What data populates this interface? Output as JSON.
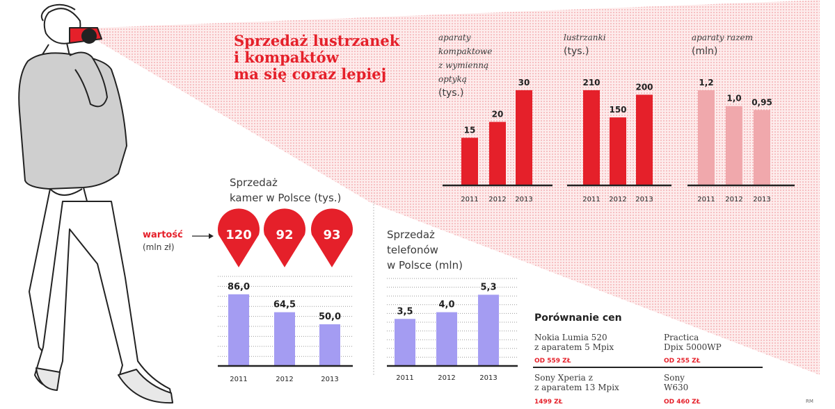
{
  "title": [
    "Sprzedaż lustrzanek",
    "i kompaktów",
    "ma się coraz lepiej"
  ],
  "colors": {
    "red": "#e5202a",
    "pink": "#f0a8ac",
    "purple": "#a49cf2",
    "axis": "#222222"
  },
  "chart_data": [
    {
      "type": "bar",
      "label": [
        "aparaty",
        "kompaktowe",
        "z wymienną",
        "optyką"
      ],
      "unit": "(tys.)",
      "categories": [
        "2011",
        "2012",
        "2013"
      ],
      "values": [
        15,
        20,
        30
      ],
      "value_labels": [
        "15",
        "20",
        "30"
      ],
      "ylim": [
        0,
        35
      ],
      "color": "red"
    },
    {
      "type": "bar",
      "label": [
        "lustrzanki"
      ],
      "unit": "(tys.)",
      "categories": [
        "2011",
        "2012",
        "2013"
      ],
      "values": [
        210,
        150,
        200
      ],
      "value_labels": [
        "210",
        "150",
        "200"
      ],
      "ylim": [
        0,
        245
      ],
      "color": "red"
    },
    {
      "type": "bar",
      "label": [
        "aparaty razem"
      ],
      "unit": "(mln)",
      "categories": [
        "2011",
        "2012",
        "2013"
      ],
      "values": [
        1.2,
        1.0,
        0.95
      ],
      "value_labels": [
        "1,2",
        "1,0",
        "0,95"
      ],
      "ylim": [
        0,
        1.4
      ],
      "color": "pink"
    },
    {
      "type": "bar",
      "label": [
        "Sprzedaż",
        "kamer w Polsce (tys.)"
      ],
      "categories": [
        "2011",
        "2012",
        "2013"
      ],
      "values": [
        86.0,
        64.5,
        50.0
      ],
      "value_labels": [
        "86,0",
        "64,5",
        "50,0"
      ],
      "ylim": [
        0,
        100
      ],
      "grid": true,
      "color": "purple",
      "annotation": {
        "label": "wartość",
        "unit": "(mln zł)",
        "values": [
          "120",
          "92",
          "93"
        ]
      }
    },
    {
      "type": "bar",
      "label": [
        "Sprzedaż",
        "telefonów",
        "w Polsce (mln)"
      ],
      "categories": [
        "2011",
        "2012",
        "2013"
      ],
      "values": [
        3.5,
        4.0,
        5.3
      ],
      "value_labels": [
        "3,5",
        "4,0",
        "5,3"
      ],
      "ylim": [
        0,
        6.2
      ],
      "grid": true,
      "color": "purple"
    }
  ],
  "price_comparison": {
    "title": "Porównanie cen",
    "items": [
      {
        "name": [
          "Nokia Lumia 520",
          "z aparatem 5 Mpix"
        ],
        "price": "OD 559 ZŁ"
      },
      {
        "name": [
          "Practica",
          "Dpix 5000WP"
        ],
        "price": "OD 255 ZŁ"
      },
      {
        "name": [
          "Sony Xperia z",
          "z aparatem 13 Mpix"
        ],
        "price": "1499 ZŁ"
      },
      {
        "name": [
          "Sony",
          "W630"
        ],
        "price": "OD 460 ZŁ"
      }
    ]
  },
  "credit": "RM"
}
